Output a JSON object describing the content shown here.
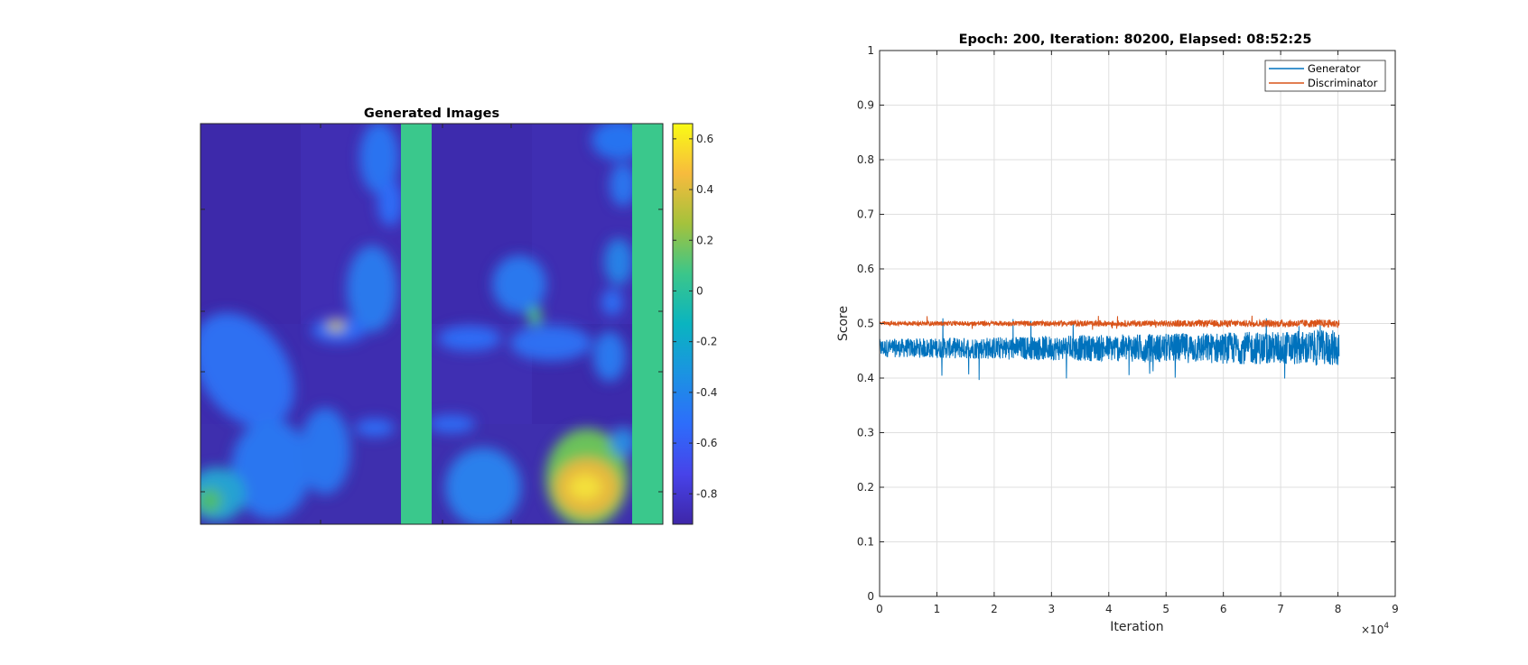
{
  "colors": {
    "generator": "#0072BD",
    "discriminator": "#D95319",
    "grid": "#DFDFDF",
    "axis": "#262626"
  },
  "chart_data": [
    {
      "type": "heatmap",
      "title": "Generated Images",
      "colormap": "parula",
      "colorbar": {
        "range": [
          -0.92,
          0.66
        ],
        "ticks": [
          -0.8,
          -0.6,
          -0.4,
          -0.2,
          0,
          0.2,
          0.4,
          0.6
        ],
        "tick_labels": [
          "-0.8",
          "-0.6",
          "-0.4",
          "-0.2",
          "0",
          "0.2",
          "0.4",
          "0.6"
        ]
      }
    },
    {
      "type": "line",
      "title": "Epoch: 200, Iteration: 80200, Elapsed: 08:52:25",
      "xlabel": "Iteration",
      "ylabel": "Score",
      "x_exponent_label": "×10",
      "x_exponent": "4",
      "xlim": [
        0,
        90000
      ],
      "ylim": [
        0,
        1
      ],
      "xticks": [
        0,
        10000,
        20000,
        30000,
        40000,
        50000,
        60000,
        70000,
        80000,
        90000
      ],
      "xtick_labels": [
        "0",
        "1",
        "2",
        "3",
        "4",
        "5",
        "6",
        "7",
        "8",
        "9"
      ],
      "yticks": [
        0,
        0.1,
        0.2,
        0.3,
        0.4,
        0.5,
        0.6,
        0.7,
        0.8,
        0.9,
        1
      ],
      "ytick_labels": [
        "0",
        "0.1",
        "0.2",
        "0.3",
        "0.4",
        "0.5",
        "0.6",
        "0.7",
        "0.8",
        "0.9",
        "1"
      ],
      "grid": true,
      "legend_position": "top-right",
      "series": [
        {
          "name": "Generator",
          "x_range": [
            0,
            80200
          ],
          "mean": 0.455,
          "noise_band": [
            0.425,
            0.48
          ],
          "extremes": [
            0.395,
            0.51
          ]
        },
        {
          "name": "Discriminator",
          "x_range": [
            0,
            80200
          ],
          "mean": 0.5,
          "noise_band": [
            0.494,
            0.506
          ],
          "extremes": [
            0.488,
            0.515
          ]
        }
      ]
    }
  ]
}
